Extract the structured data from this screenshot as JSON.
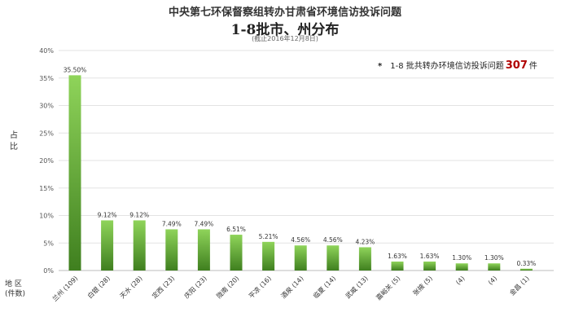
{
  "titles": {
    "line1": "中央第七环保督察组转办甘肃省环境信访投诉问题",
    "line2": "1-8批市、州分布",
    "subtitle": "(截止2016年12月8日)"
  },
  "note": {
    "star": "*",
    "text_before": "1-8 批共转办环境信访投诉问题",
    "count": "307",
    "text_after": "件"
  },
  "axis": {
    "ylabel": "占比",
    "xlabel_line1": "地 区",
    "xlabel_line2": "(件数)"
  },
  "colors": {
    "bar_top": "#8fd45a",
    "bar_bottom": "#3f7f1f",
    "grid": "#e3e3e3"
  },
  "chart_data": {
    "type": "bar",
    "title": "1-8批市、州分布",
    "xlabel": "地 区(件数)",
    "ylabel": "占比",
    "ylim": [
      0,
      40
    ],
    "yticks": [
      "0%",
      "5%",
      "10%",
      "15%",
      "20%",
      "25%",
      "30%",
      "35%",
      "40%"
    ],
    "grid": true,
    "legend": "none",
    "categories": [
      "兰州 (109)",
      "白银 (28)",
      "天水 (28)",
      "定西 (23)",
      "庆阳 (23)",
      "陇南 (20)",
      "平凉 (16)",
      "酒泉 (14)",
      "临夏 (14)",
      "武威 (13)",
      "嘉峪关 (5)",
      "张掖 (5)",
      "(4)",
      "(4)",
      "金昌 (1)"
    ],
    "values": [
      35.5,
      9.12,
      9.12,
      7.49,
      7.49,
      6.51,
      5.21,
      4.56,
      4.56,
      4.23,
      1.63,
      1.63,
      1.3,
      1.3,
      0.33
    ],
    "labels": [
      "35.50%",
      "9.12%",
      "9.12%",
      "7.49%",
      "7.49%",
      "6.51%",
      "5.21%",
      "4.56%",
      "4.56%",
      "4.23%",
      "1.63%",
      "1.63%",
      "1.30%",
      "1.30%",
      "0.33%"
    ]
  }
}
